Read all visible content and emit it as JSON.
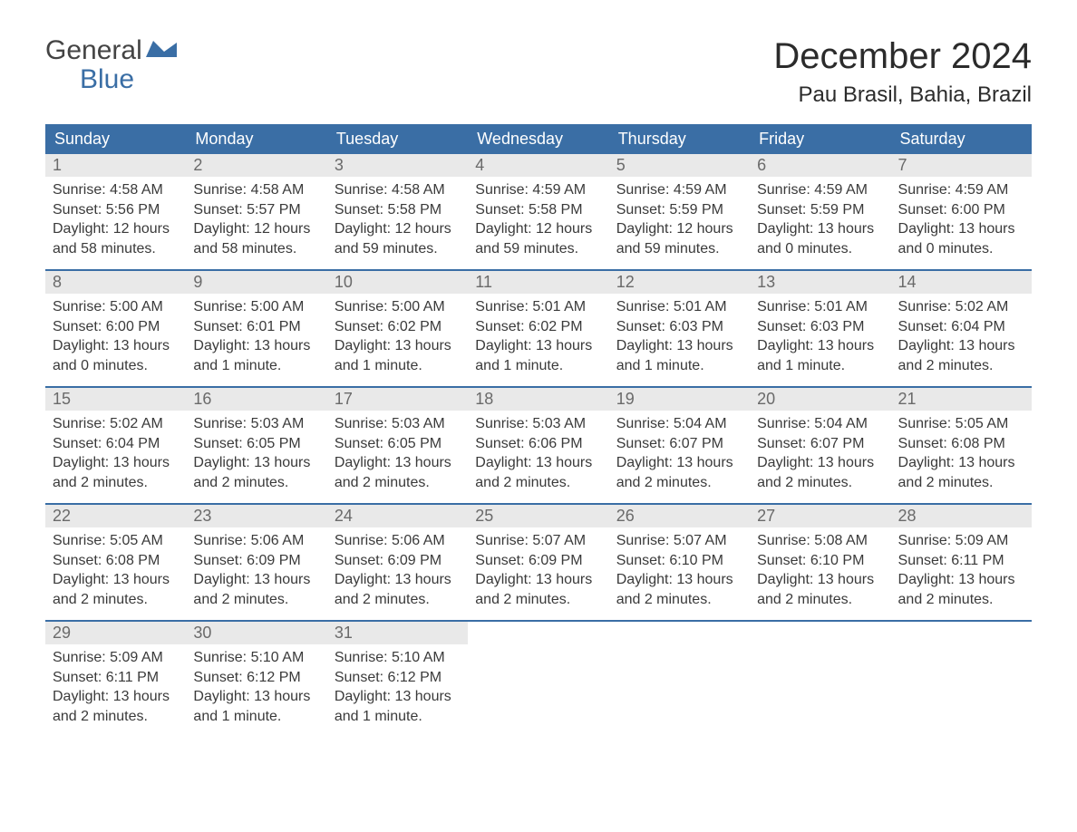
{
  "brand": {
    "part1": "General",
    "part2": "Blue"
  },
  "title": "December 2024",
  "location": "Pau Brasil, Bahia, Brazil",
  "colors": {
    "header_bg": "#3a6ea5",
    "header_fg": "#ffffff",
    "daynum_bg": "#e9e9e9",
    "daynum_fg": "#6a6a6a",
    "body_fg": "#3a3a3a",
    "page_bg": "#ffffff",
    "row_divider": "#3a6ea5"
  },
  "typography": {
    "title_fontsize_pt": 30,
    "location_fontsize_pt": 18,
    "header_fontsize_pt": 14,
    "daynum_fontsize_pt": 14,
    "body_fontsize_pt": 12
  },
  "layout": {
    "columns": 7,
    "rows": 5,
    "first_weekday": "Sunday"
  },
  "weekdays": [
    "Sunday",
    "Monday",
    "Tuesday",
    "Wednesday",
    "Thursday",
    "Friday",
    "Saturday"
  ],
  "days": [
    {
      "n": "1",
      "sunrise": "Sunrise: 4:58 AM",
      "sunset": "Sunset: 5:56 PM",
      "day1": "Daylight: 12 hours",
      "day2": "and 58 minutes."
    },
    {
      "n": "2",
      "sunrise": "Sunrise: 4:58 AM",
      "sunset": "Sunset: 5:57 PM",
      "day1": "Daylight: 12 hours",
      "day2": "and 58 minutes."
    },
    {
      "n": "3",
      "sunrise": "Sunrise: 4:58 AM",
      "sunset": "Sunset: 5:58 PM",
      "day1": "Daylight: 12 hours",
      "day2": "and 59 minutes."
    },
    {
      "n": "4",
      "sunrise": "Sunrise: 4:59 AM",
      "sunset": "Sunset: 5:58 PM",
      "day1": "Daylight: 12 hours",
      "day2": "and 59 minutes."
    },
    {
      "n": "5",
      "sunrise": "Sunrise: 4:59 AM",
      "sunset": "Sunset: 5:59 PM",
      "day1": "Daylight: 12 hours",
      "day2": "and 59 minutes."
    },
    {
      "n": "6",
      "sunrise": "Sunrise: 4:59 AM",
      "sunset": "Sunset: 5:59 PM",
      "day1": "Daylight: 13 hours",
      "day2": "and 0 minutes."
    },
    {
      "n": "7",
      "sunrise": "Sunrise: 4:59 AM",
      "sunset": "Sunset: 6:00 PM",
      "day1": "Daylight: 13 hours",
      "day2": "and 0 minutes."
    },
    {
      "n": "8",
      "sunrise": "Sunrise: 5:00 AM",
      "sunset": "Sunset: 6:00 PM",
      "day1": "Daylight: 13 hours",
      "day2": "and 0 minutes."
    },
    {
      "n": "9",
      "sunrise": "Sunrise: 5:00 AM",
      "sunset": "Sunset: 6:01 PM",
      "day1": "Daylight: 13 hours",
      "day2": "and 1 minute."
    },
    {
      "n": "10",
      "sunrise": "Sunrise: 5:00 AM",
      "sunset": "Sunset: 6:02 PM",
      "day1": "Daylight: 13 hours",
      "day2": "and 1 minute."
    },
    {
      "n": "11",
      "sunrise": "Sunrise: 5:01 AM",
      "sunset": "Sunset: 6:02 PM",
      "day1": "Daylight: 13 hours",
      "day2": "and 1 minute."
    },
    {
      "n": "12",
      "sunrise": "Sunrise: 5:01 AM",
      "sunset": "Sunset: 6:03 PM",
      "day1": "Daylight: 13 hours",
      "day2": "and 1 minute."
    },
    {
      "n": "13",
      "sunrise": "Sunrise: 5:01 AM",
      "sunset": "Sunset: 6:03 PM",
      "day1": "Daylight: 13 hours",
      "day2": "and 1 minute."
    },
    {
      "n": "14",
      "sunrise": "Sunrise: 5:02 AM",
      "sunset": "Sunset: 6:04 PM",
      "day1": "Daylight: 13 hours",
      "day2": "and 2 minutes."
    },
    {
      "n": "15",
      "sunrise": "Sunrise: 5:02 AM",
      "sunset": "Sunset: 6:04 PM",
      "day1": "Daylight: 13 hours",
      "day2": "and 2 minutes."
    },
    {
      "n": "16",
      "sunrise": "Sunrise: 5:03 AM",
      "sunset": "Sunset: 6:05 PM",
      "day1": "Daylight: 13 hours",
      "day2": "and 2 minutes."
    },
    {
      "n": "17",
      "sunrise": "Sunrise: 5:03 AM",
      "sunset": "Sunset: 6:05 PM",
      "day1": "Daylight: 13 hours",
      "day2": "and 2 minutes."
    },
    {
      "n": "18",
      "sunrise": "Sunrise: 5:03 AM",
      "sunset": "Sunset: 6:06 PM",
      "day1": "Daylight: 13 hours",
      "day2": "and 2 minutes."
    },
    {
      "n": "19",
      "sunrise": "Sunrise: 5:04 AM",
      "sunset": "Sunset: 6:07 PM",
      "day1": "Daylight: 13 hours",
      "day2": "and 2 minutes."
    },
    {
      "n": "20",
      "sunrise": "Sunrise: 5:04 AM",
      "sunset": "Sunset: 6:07 PM",
      "day1": "Daylight: 13 hours",
      "day2": "and 2 minutes."
    },
    {
      "n": "21",
      "sunrise": "Sunrise: 5:05 AM",
      "sunset": "Sunset: 6:08 PM",
      "day1": "Daylight: 13 hours",
      "day2": "and 2 minutes."
    },
    {
      "n": "22",
      "sunrise": "Sunrise: 5:05 AM",
      "sunset": "Sunset: 6:08 PM",
      "day1": "Daylight: 13 hours",
      "day2": "and 2 minutes."
    },
    {
      "n": "23",
      "sunrise": "Sunrise: 5:06 AM",
      "sunset": "Sunset: 6:09 PM",
      "day1": "Daylight: 13 hours",
      "day2": "and 2 minutes."
    },
    {
      "n": "24",
      "sunrise": "Sunrise: 5:06 AM",
      "sunset": "Sunset: 6:09 PM",
      "day1": "Daylight: 13 hours",
      "day2": "and 2 minutes."
    },
    {
      "n": "25",
      "sunrise": "Sunrise: 5:07 AM",
      "sunset": "Sunset: 6:09 PM",
      "day1": "Daylight: 13 hours",
      "day2": "and 2 minutes."
    },
    {
      "n": "26",
      "sunrise": "Sunrise: 5:07 AM",
      "sunset": "Sunset: 6:10 PM",
      "day1": "Daylight: 13 hours",
      "day2": "and 2 minutes."
    },
    {
      "n": "27",
      "sunrise": "Sunrise: 5:08 AM",
      "sunset": "Sunset: 6:10 PM",
      "day1": "Daylight: 13 hours",
      "day2": "and 2 minutes."
    },
    {
      "n": "28",
      "sunrise": "Sunrise: 5:09 AM",
      "sunset": "Sunset: 6:11 PM",
      "day1": "Daylight: 13 hours",
      "day2": "and 2 minutes."
    },
    {
      "n": "29",
      "sunrise": "Sunrise: 5:09 AM",
      "sunset": "Sunset: 6:11 PM",
      "day1": "Daylight: 13 hours",
      "day2": "and 2 minutes."
    },
    {
      "n": "30",
      "sunrise": "Sunrise: 5:10 AM",
      "sunset": "Sunset: 6:12 PM",
      "day1": "Daylight: 13 hours",
      "day2": "and 1 minute."
    },
    {
      "n": "31",
      "sunrise": "Sunrise: 5:10 AM",
      "sunset": "Sunset: 6:12 PM",
      "day1": "Daylight: 13 hours",
      "day2": "and 1 minute."
    }
  ]
}
